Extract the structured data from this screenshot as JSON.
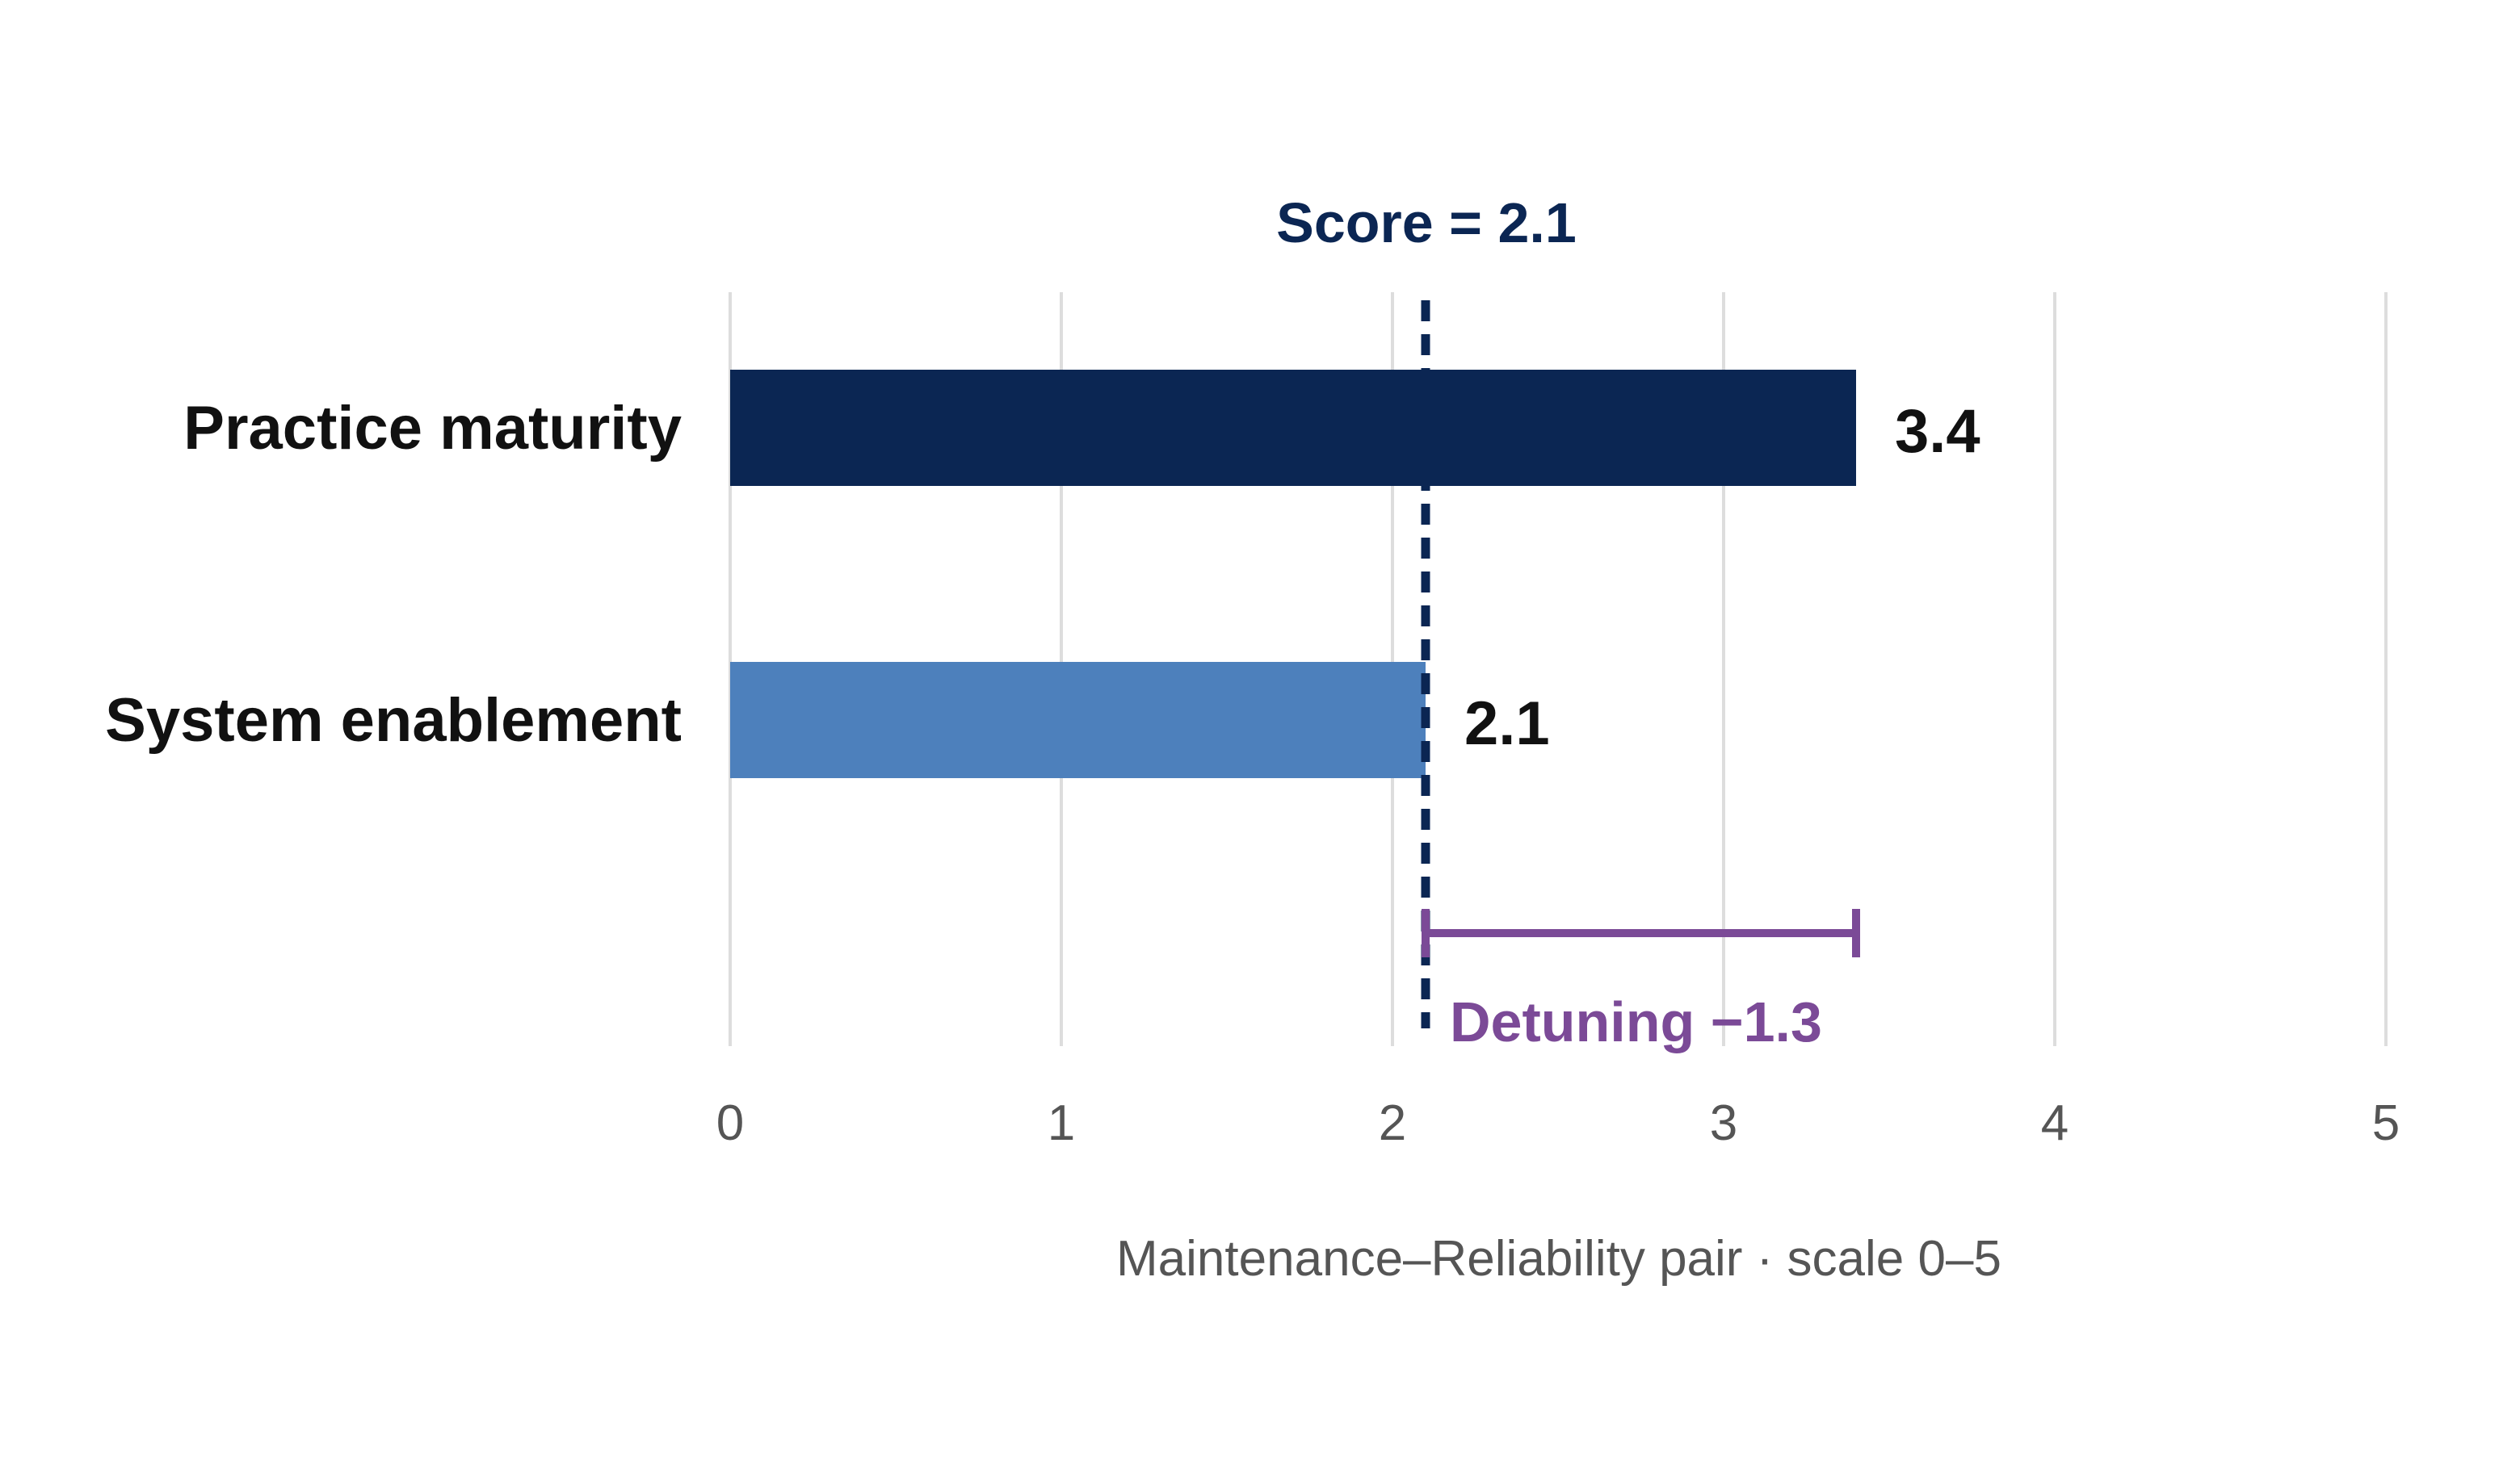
{
  "chart_data": {
    "type": "bar",
    "orientation": "horizontal",
    "categories": [
      "Practice maturity",
      "System enablement"
    ],
    "values": [
      3.4,
      2.1
    ],
    "value_labels": [
      "3.4",
      "2.1"
    ],
    "colors": [
      "#0b2653",
      "#4d80bc"
    ],
    "xlabel": "Maintenance–Reliability pair · scale 0–5",
    "xlim": [
      0,
      5
    ],
    "xticks": [
      "0",
      "1",
      "2",
      "3",
      "4",
      "5"
    ],
    "grid": true,
    "reference_line": {
      "value": 2.1,
      "label": "Score = 2.1",
      "color": "#0b2653",
      "style": "dashed"
    },
    "gap_annotation": {
      "from": 2.1,
      "to": 3.4,
      "label": "Detuning −1.3",
      "color": "#7b4a97"
    }
  }
}
